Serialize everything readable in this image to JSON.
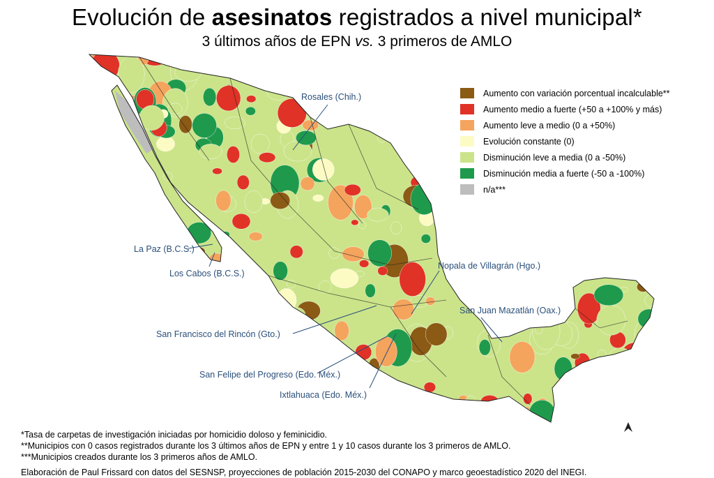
{
  "title": {
    "pre": "Evolución de ",
    "bold": "asesinatos",
    "post": " registrados a nivel municipal*"
  },
  "subtitle": {
    "pre": "3 últimos años de EPN ",
    "italic": "vs.",
    "post": " 3 primeros de AMLO"
  },
  "colors": {
    "incalculable": "#8b5a14",
    "medium_strong_increase": "#e03226",
    "light_medium_increase": "#f5a45d",
    "constant": "#fdfbc4",
    "light_medium_decrease": "#cbe48a",
    "medium_strong_decrease": "#1f9a4c",
    "na": "#bdbdbd",
    "label": "#2a4f7a"
  },
  "legend": [
    {
      "label": "Aumento con variación porcentual incalculable**",
      "color": "#8b5a14"
    },
    {
      "label": "Aumento medio a fuerte (+50 a +100% y más)",
      "color": "#e03226"
    },
    {
      "label": "Aumento leve a medio (0 a +50%)",
      "color": "#f5a45d"
    },
    {
      "label": "Evolución constante (0)",
      "color": "#fdfbc4"
    },
    {
      "label": "Disminución leve a media (0 a -50%)",
      "color": "#cbe48a"
    },
    {
      "label": "Disminución media a fuerte (-50 a -100%)",
      "color": "#1f9a4c"
    },
    {
      "label": "n/a***",
      "color": "#bdbdbd"
    }
  ],
  "places": [
    {
      "name": "Rosales (Chih.)"
    },
    {
      "name": "La Paz (B.C.S.)"
    },
    {
      "name": "Los Cabos (B.C.S.)"
    },
    {
      "name": "Nopala de Villagrán (Hgo.)"
    },
    {
      "name": "San Juan Mazatlán (Oax.)"
    },
    {
      "name": "San Francisco del Rincón (Gto.)"
    },
    {
      "name": "San Felipe del Progreso (Edo. Méx.)"
    },
    {
      "name": "Ixtlahuaca (Edo. Méx.)"
    }
  ],
  "notes": [
    "*Tasa de carpetas de investigación iniciadas por homicidio doloso y feminicidio.",
    "**Municipios con 0 casos registrados durante los 3 últimos años de EPN y entre 1 y 10 casos durante los 3 primeros de AMLO.",
    "***Municipios creados durante los 3 primeros años de AMLO."
  ],
  "credit": "Elaboración de Paul Frissard con datos del SESNSP, proyecciones de población 2015-2030 del CONAPO y marco geoestadístico 2020 del INEGI."
}
